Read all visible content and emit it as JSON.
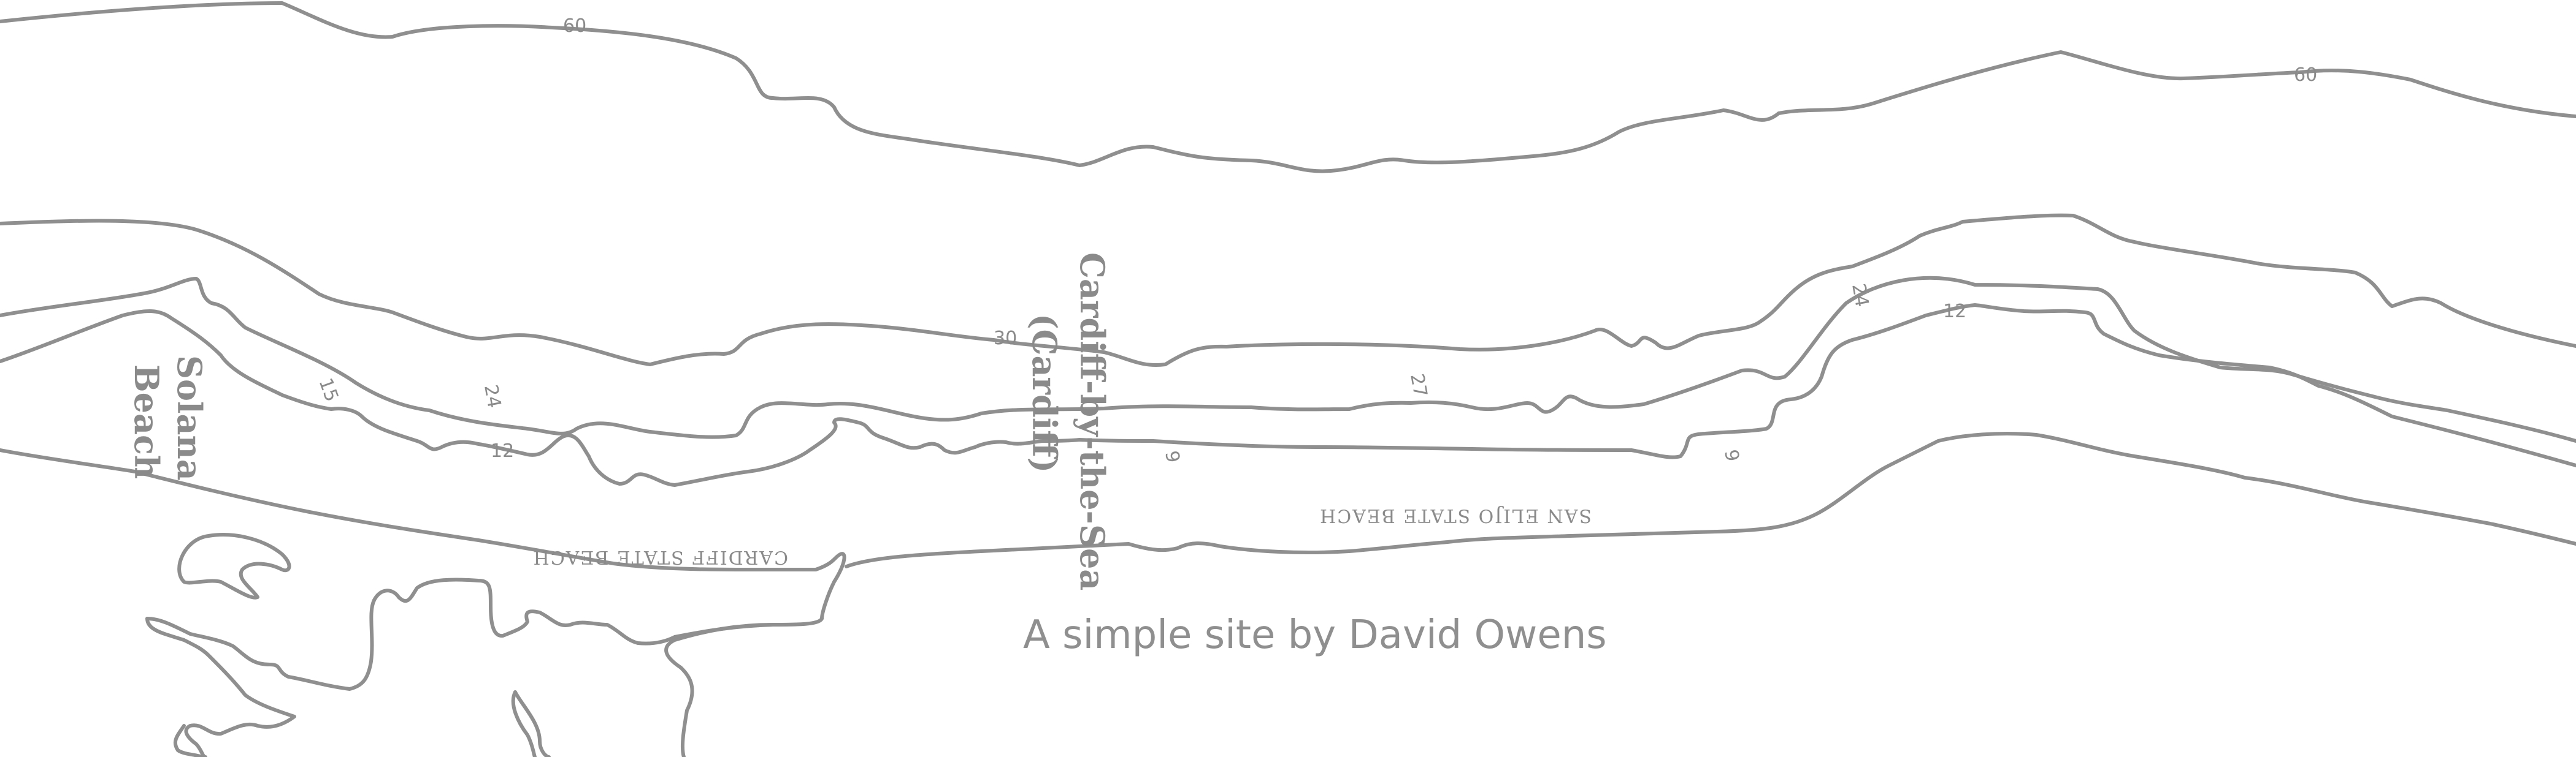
{
  "map": {
    "depth_labels": {
      "d60_left": "60",
      "d60_right": "60",
      "d30": "30",
      "d24_left": "24",
      "d24_right": "24",
      "d27": "27",
      "d15": "15",
      "d12_left": "12",
      "d12_right": "12",
      "d9_left": "9",
      "d9_right": "9"
    },
    "places": {
      "solana_1": "Solana",
      "solana_2": "Beach",
      "cardiff_1": "Cardiff-by-the-Sea",
      "cardiff_2": "(Cardiff)"
    },
    "beaches": {
      "cardiff_state": "CARDIFF   STATE   BEACH",
      "san_elijo": "SAN ELIJO STATE BEACH"
    }
  },
  "footer": {
    "tagline": "A simple site by David Owens"
  },
  "colors": {
    "line": "#8f8f8f",
    "text": "#8a8a8a",
    "background": "#ffffff"
  }
}
